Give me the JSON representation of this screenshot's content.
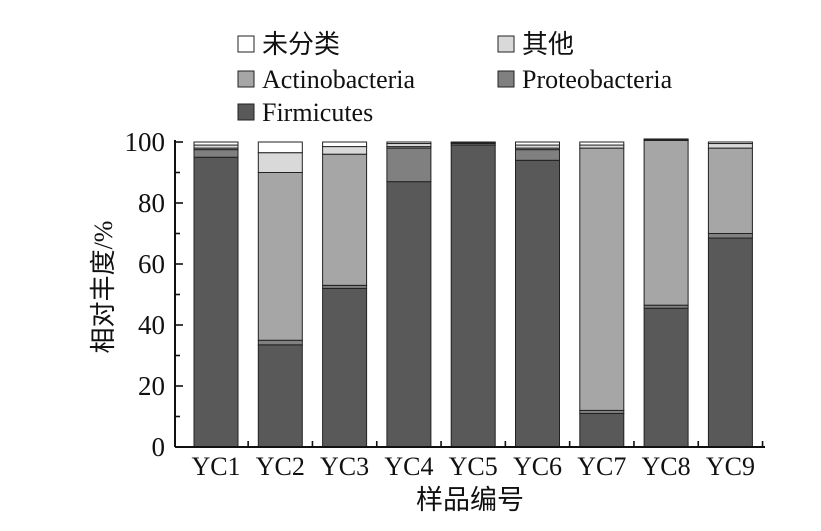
{
  "chart_data": {
    "type": "bar",
    "stacked": true,
    "title": "",
    "xlabel": "样品编号",
    "ylabel": "相对丰度/%",
    "ylim": [
      0,
      100
    ],
    "yticks": [
      "0",
      "20",
      "40",
      "60",
      "80",
      "100"
    ],
    "categories": [
      "YC1",
      "YC2",
      "YC3",
      "YC4",
      "YC5",
      "YC6",
      "YC7",
      "YC8",
      "YC9"
    ],
    "series": [
      {
        "name": "Firmicutes",
        "color": "#595959",
        "values": [
          95,
          33.5,
          52,
          87,
          99,
          94,
          11,
          45.5,
          68.5
        ]
      },
      {
        "name": "Proteobacteria",
        "color": "#808080",
        "values": [
          2.5,
          1.5,
          1,
          11,
          0.5,
          3.5,
          1,
          1,
          1.5
        ]
      },
      {
        "name": "Actinobacteria",
        "color": "#a6a6a6",
        "values": [
          0.5,
          55,
          43,
          0.5,
          0,
          0.5,
          86,
          54,
          28
        ]
      },
      {
        "name": "其他",
        "color": "#d9d9d9",
        "values": [
          1,
          6.5,
          2.5,
          1,
          0.3,
          1,
          1,
          0.2,
          1.5
        ]
      },
      {
        "name": "未分类",
        "color": "#ffffff",
        "values": [
          1,
          3.5,
          1.5,
          0.5,
          0.2,
          1,
          1,
          0.3,
          0.5
        ]
      }
    ],
    "legend": {
      "position": "top",
      "order": [
        "未分类",
        "其他",
        "Actinobacteria",
        "Proteobacteria",
        "Firmicutes"
      ]
    },
    "grid": false
  }
}
